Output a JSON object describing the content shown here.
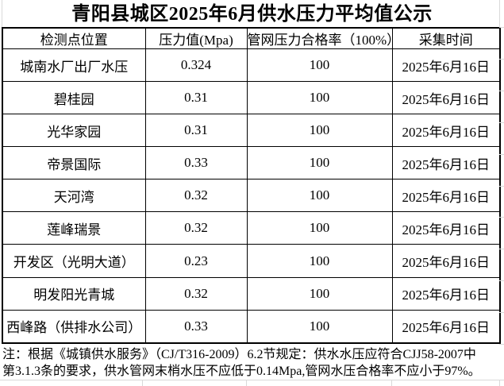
{
  "title": "青阳县城区2025年6月供水压力平均值公示",
  "table": {
    "headers": [
      "检测点位置",
      "压力值(Mpa)",
      "管网压力合格率（100%）",
      "采集时间"
    ],
    "rows": [
      {
        "location": "城南水厂出厂水压",
        "pressure": "0.324",
        "rate": "100",
        "date": "2025年6月16日"
      },
      {
        "location": "碧桂园",
        "pressure": "0.31",
        "rate": "100",
        "date": "2025年6月16日"
      },
      {
        "location": "光华家园",
        "pressure": "0.31",
        "rate": "100",
        "date": "2025年6月16日"
      },
      {
        "location": "帝景国际",
        "pressure": "0.33",
        "rate": "100",
        "date": "2025年6月16日"
      },
      {
        "location": "天河湾",
        "pressure": "0.32",
        "rate": "100",
        "date": "2025年6月16日"
      },
      {
        "location": "莲峰瑞景",
        "pressure": "0.32",
        "rate": "100",
        "date": "2025年6月16日"
      },
      {
        "location": "开发区（光明大道）",
        "pressure": "0.23",
        "rate": "100",
        "date": "2025年6月16日"
      },
      {
        "location": "明发阳光青城",
        "pressure": "0.32",
        "rate": "100",
        "date": "2025年6月16日"
      },
      {
        "location": "西峰路（供排水公司）",
        "pressure": "0.33",
        "rate": "100",
        "date": "2025年6月16日"
      }
    ]
  },
  "note": {
    "line1": "注：根据《城镇供水服务》（CJ/T316-2009）6.2节规定：供水水压应符合CJJ58-2007中",
    "line2": "第3.1.3条的要求，供水管网末梢水压不应低于0.14Mpa,管网水压合格率不应小于97%。"
  },
  "colors": {
    "text": "#000000",
    "border": "#000000",
    "gridline": "#d9d9d9",
    "background": "#ffffff"
  }
}
